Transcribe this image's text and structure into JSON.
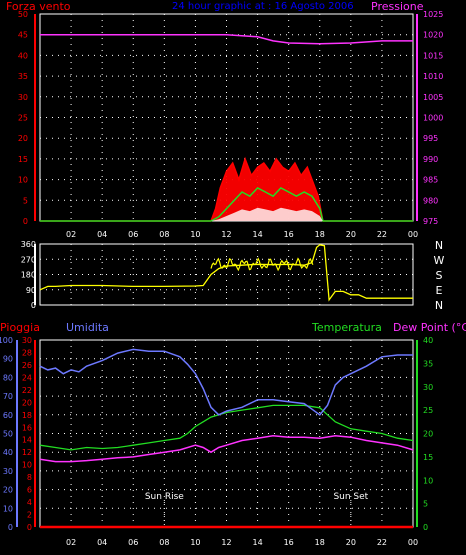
{
  "header": {
    "title": "24 hour graphic at : 16 Agosto 2006",
    "left_label": "Forza vento",
    "right_label": "Pressione"
  },
  "colors": {
    "background": "#000000",
    "wind": "#ff0000",
    "gust": "#22dd22",
    "pressure": "#ff33ff",
    "direction": "#ffff00",
    "humidity": "#6d79ff",
    "temperature": "#22dd22",
    "dewpoint": "#ff33ff",
    "rain": "#ff0000",
    "title": "#0000ff",
    "grid": "#ffffff"
  },
  "compass": {
    "letters": [
      "N",
      "W",
      "S",
      "E",
      "N"
    ]
  },
  "bottom_header": {
    "pioggia": "Pioggia",
    "umidita": "Umidita",
    "temperatura": "Temperatura",
    "dewpoint": "Dew Point (°C)"
  },
  "annotations": {
    "sunrise": "Sun Rise",
    "sunset": "Sun Set"
  },
  "chart_data": [
    {
      "type": "line",
      "title": "24 hour graphic at : 16 Agosto 2006",
      "x_ticks": [
        "02",
        "04",
        "06",
        "08",
        "10",
        "12",
        "14",
        "16",
        "18",
        "20",
        "22",
        "00"
      ],
      "ylabel": "Forza vento",
      "y2label": "Pressione",
      "ylim": [
        0,
        50
      ],
      "y2lim": [
        975,
        1025
      ],
      "y_ticks": [
        0,
        5,
        10,
        15,
        20,
        25,
        30,
        35,
        40,
        45,
        50
      ],
      "y2_ticks": [
        975,
        980,
        985,
        990,
        995,
        1000,
        1005,
        1010,
        1015,
        1020,
        1025
      ],
      "series": [
        {
          "name": "Pressione",
          "axis": "right",
          "x": [
            0,
            2,
            4,
            6,
            8,
            10,
            12,
            14,
            15,
            16,
            18,
            20,
            22,
            24
          ],
          "values": [
            1020,
            1020,
            1020,
            1020,
            1020,
            1020,
            1020,
            1019.5,
            1018.5,
            1018,
            1017.8,
            1018,
            1018.5,
            1018.5
          ]
        },
        {
          "name": "Forza vento",
          "axis": "left",
          "x": [
            0,
            11.0,
            11.3,
            11.6,
            12.0,
            12.4,
            12.8,
            13.2,
            13.6,
            14.0,
            14.4,
            14.8,
            15.2,
            15.6,
            16.0,
            16.4,
            16.8,
            17.2,
            17.6,
            17.9,
            18.2,
            24
          ],
          "values": [
            0,
            0,
            3,
            8,
            12,
            14,
            10,
            15,
            11,
            13,
            14,
            12,
            15,
            13,
            12,
            14,
            11,
            13,
            9,
            6,
            0,
            0
          ]
        },
        {
          "name": "Raffica",
          "axis": "left",
          "x": [
            0,
            11.0,
            11.5,
            12.0,
            12.5,
            13.0,
            13.5,
            14.0,
            14.5,
            15.0,
            15.5,
            16.0,
            16.5,
            17.0,
            17.5,
            18.0,
            18.2,
            24
          ],
          "values": [
            0,
            0,
            1,
            3,
            5,
            7,
            6,
            8,
            7,
            6,
            8,
            7,
            6,
            7,
            6,
            3,
            0,
            0
          ]
        }
      ]
    },
    {
      "type": "line",
      "title": "",
      "x_ticks": [
        "02",
        "04",
        "06",
        "08",
        "10",
        "12",
        "14",
        "16",
        "18",
        "20",
        "22",
        "00"
      ],
      "ylim": [
        0,
        360
      ],
      "y_ticks": [
        0,
        90,
        180,
        270,
        360
      ],
      "series": [
        {
          "name": "Direzione vento",
          "x": [
            0,
            0.5,
            1.0,
            2.0,
            4.0,
            6.0,
            8.0,
            10.0,
            10.5,
            11.0,
            11.5,
            12,
            13,
            14,
            15,
            16,
            17,
            17.5,
            17.8,
            18.0,
            18.3,
            18.6,
            19.0,
            19.5,
            20.0,
            20.5,
            21.0,
            22.0,
            24.0
          ],
          "values": [
            90,
            110,
            110,
            115,
            115,
            110,
            110,
            112,
            115,
            180,
            215,
            230,
            235,
            240,
            238,
            240,
            235,
            250,
            340,
            355,
            350,
            30,
            80,
            80,
            60,
            60,
            40,
            40,
            40
          ]
        }
      ]
    },
    {
      "type": "line",
      "title": "",
      "x_ticks": [
        "02",
        "04",
        "06",
        "08",
        "10",
        "12",
        "14",
        "16",
        "18",
        "20",
        "22",
        "00"
      ],
      "ylabel": "Pioggia",
      "y2label": "Temperatura",
      "ylim": [
        0,
        30
      ],
      "y_ticks": [
        0,
        2,
        4,
        6,
        8,
        10,
        12,
        14,
        16,
        18,
        20,
        22,
        24,
        26,
        28,
        30
      ],
      "humidity_ticks": [
        0,
        10,
        20,
        30,
        40,
        50,
        60,
        70,
        80,
        90,
        100
      ],
      "y2lim": [
        0,
        40
      ],
      "y2_ticks": [
        0,
        5,
        10,
        15,
        20,
        25,
        30,
        35,
        40
      ],
      "series": [
        {
          "name": "Umidita",
          "axis": "humidity",
          "ylim": [
            0,
            100
          ],
          "x": [
            0,
            0.5,
            1.0,
            1.5,
            2.0,
            2.5,
            3.0,
            4.0,
            5.0,
            6.0,
            7.0,
            8.0,
            9.0,
            9.5,
            10.0,
            10.5,
            11.0,
            11.5,
            12.0,
            13.0,
            14.0,
            15.0,
            16.0,
            17.0,
            17.5,
            18.0,
            18.5,
            19.0,
            19.5,
            20.0,
            21.0,
            22.0,
            23.0,
            24.0
          ],
          "values": [
            86,
            84,
            85,
            82,
            84,
            83,
            86,
            89,
            93,
            95,
            94,
            94,
            91,
            87,
            82,
            74,
            64,
            60,
            62,
            64,
            68,
            68,
            67,
            66,
            63,
            60,
            65,
            76,
            80,
            82,
            86,
            91,
            92,
            92
          ]
        },
        {
          "name": "Temperatura",
          "axis": "right",
          "x": [
            0,
            1.0,
            2.0,
            3.0,
            4.0,
            5.0,
            6.0,
            7.0,
            8.0,
            9.0,
            9.5,
            10.0,
            10.5,
            11.0,
            12.0,
            13.0,
            14.0,
            15.0,
            16.0,
            17.0,
            18.0,
            18.5,
            19.0,
            20.0,
            21.0,
            22.0,
            23.0,
            24.0
          ],
          "values": [
            17.5,
            17.0,
            16.5,
            17.0,
            16.8,
            17.0,
            17.5,
            18.0,
            18.5,
            19.0,
            20.0,
            21.5,
            22.5,
            23.5,
            24.5,
            25.0,
            25.5,
            26.0,
            26.0,
            26.0,
            25.5,
            24.0,
            22.5,
            21.0,
            20.5,
            20.0,
            19.0,
            18.5
          ]
        },
        {
          "name": "Dew Point",
          "axis": "right",
          "x": [
            0,
            1.0,
            2.0,
            3.0,
            4.0,
            5.0,
            6.0,
            7.0,
            8.0,
            9.0,
            10.0,
            10.5,
            11.0,
            11.5,
            12.0,
            13.0,
            14.0,
            15.0,
            16.0,
            17.0,
            18.0,
            19.0,
            20.0,
            21.0,
            22.0,
            23.0,
            24.0
          ],
          "values": [
            14.5,
            14.0,
            14.0,
            14.2,
            14.5,
            14.8,
            15.0,
            15.5,
            16.0,
            16.5,
            17.5,
            17.0,
            16.0,
            17.0,
            17.5,
            18.5,
            19.0,
            19.5,
            19.2,
            19.2,
            19.0,
            19.5,
            19.2,
            18.5,
            18.0,
            17.5,
            16.5
          ]
        },
        {
          "name": "Pioggia",
          "axis": "left",
          "x": [
            0,
            24
          ],
          "values": [
            0,
            0
          ]
        }
      ],
      "annotations": [
        {
          "label": "Sun Rise",
          "x": 8.0
        },
        {
          "label": "Sun Set",
          "x": 20.0
        }
      ]
    }
  ]
}
